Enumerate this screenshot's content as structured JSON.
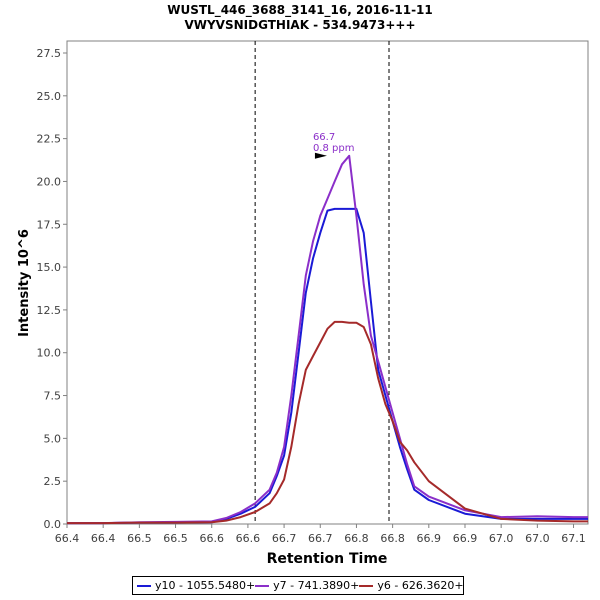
{
  "chart_data": {
    "type": "line",
    "title": "WUSTL_446_3688_3141_16, 2016-11-11",
    "subtitle": "VWYVSNIDGTHIAK - 534.9473+++",
    "xlabel": "Retention Time",
    "ylabel": "Intensity 10^6",
    "xlim": [
      66.4,
      67.12
    ],
    "ylim": [
      0,
      28.2
    ],
    "x_ticks": [
      66.4,
      66.45,
      66.5,
      66.55,
      66.6,
      66.65,
      66.7,
      66.75,
      66.8,
      66.85,
      66.9,
      66.95,
      67.0,
      67.05,
      67.1
    ],
    "x_tick_labels": [
      "66.4",
      "66.4",
      "66.5",
      "66.5",
      "66.6",
      "66.6",
      "66.7",
      "66.7",
      "66.8",
      "66.8",
      "66.9",
      "66.9",
      "67.0",
      "67.0",
      "67.1"
    ],
    "y_ticks": [
      0,
      2.5,
      5,
      7.5,
      10,
      12.5,
      15,
      17.5,
      20,
      22.5,
      25,
      27.5
    ],
    "y_tick_labels": [
      "0.0",
      "2.5",
      "5.0",
      "7.5",
      "10.0",
      "12.5",
      "15.0",
      "17.5",
      "20.0",
      "22.5",
      "25.0",
      "27.5"
    ],
    "vlines": [
      66.66,
      66.845
    ],
    "annotation": {
      "x": 66.762,
      "y": 21.5,
      "lines": [
        "66.7",
        "0.8 ppm"
      ],
      "color": "#8b2fc9"
    },
    "legend_position": "bottom",
    "grid": false,
    "series": [
      {
        "name": "y10 - 1055.5480+",
        "color": "#1a1ad6",
        "x": [
          66.4,
          66.45,
          66.5,
          66.55,
          66.6,
          66.62,
          66.64,
          66.66,
          66.68,
          66.69,
          66.7,
          66.71,
          66.72,
          66.73,
          66.74,
          66.75,
          66.76,
          66.77,
          66.78,
          66.79,
          66.8,
          66.81,
          66.82,
          66.83,
          66.84,
          66.85,
          66.86,
          66.87,
          66.88,
          66.9,
          66.95,
          67.0,
          67.05,
          67.1,
          67.12
        ],
        "y": [
          0.05,
          0.05,
          0.08,
          0.08,
          0.1,
          0.3,
          0.6,
          1.0,
          1.8,
          2.8,
          4.0,
          6.5,
          10.0,
          13.5,
          15.5,
          17.0,
          18.3,
          18.4,
          18.4,
          18.4,
          18.4,
          17.0,
          13.0,
          9.0,
          7.5,
          6.0,
          4.5,
          3.2,
          2.0,
          1.4,
          0.6,
          0.3,
          0.3,
          0.3,
          0.3
        ]
      },
      {
        "name": "y7 - 741.3890+",
        "color": "#8b2fc9",
        "x": [
          66.4,
          66.45,
          66.5,
          66.55,
          66.6,
          66.62,
          66.64,
          66.66,
          66.68,
          66.69,
          66.7,
          66.71,
          66.72,
          66.73,
          66.74,
          66.75,
          66.76,
          66.77,
          66.78,
          66.79,
          66.8,
          66.81,
          66.82,
          66.83,
          66.84,
          66.85,
          66.86,
          66.87,
          66.88,
          66.9,
          66.95,
          67.0,
          67.05,
          67.1,
          67.12
        ],
        "y": [
          0.05,
          0.05,
          0.1,
          0.12,
          0.15,
          0.35,
          0.7,
          1.2,
          2.0,
          3.0,
          4.5,
          7.5,
          11.0,
          14.5,
          16.5,
          18.0,
          19.0,
          20.0,
          21.0,
          21.5,
          18.0,
          14.0,
          11.0,
          9.5,
          8.0,
          6.5,
          5.0,
          3.5,
          2.2,
          1.6,
          0.8,
          0.4,
          0.45,
          0.4,
          0.4
        ]
      },
      {
        "name": "y6 - 626.3620+",
        "color": "#a52a2a",
        "x": [
          66.4,
          66.45,
          66.5,
          66.55,
          66.6,
          66.62,
          66.64,
          66.66,
          66.68,
          66.69,
          66.7,
          66.71,
          66.72,
          66.73,
          66.74,
          66.75,
          66.76,
          66.77,
          66.78,
          66.79,
          66.8,
          66.81,
          66.82,
          66.83,
          66.84,
          66.85,
          66.86,
          66.87,
          66.88,
          66.9,
          66.95,
          67.0,
          67.05,
          67.1,
          67.12
        ],
        "y": [
          0.05,
          0.05,
          0.08,
          0.08,
          0.1,
          0.2,
          0.4,
          0.7,
          1.2,
          1.8,
          2.6,
          4.5,
          7.0,
          9.0,
          9.8,
          10.6,
          11.4,
          11.8,
          11.8,
          11.75,
          11.75,
          11.5,
          10.5,
          8.5,
          7.0,
          6.0,
          4.8,
          4.3,
          3.6,
          2.5,
          0.9,
          0.3,
          0.2,
          0.15,
          0.15
        ]
      }
    ]
  }
}
